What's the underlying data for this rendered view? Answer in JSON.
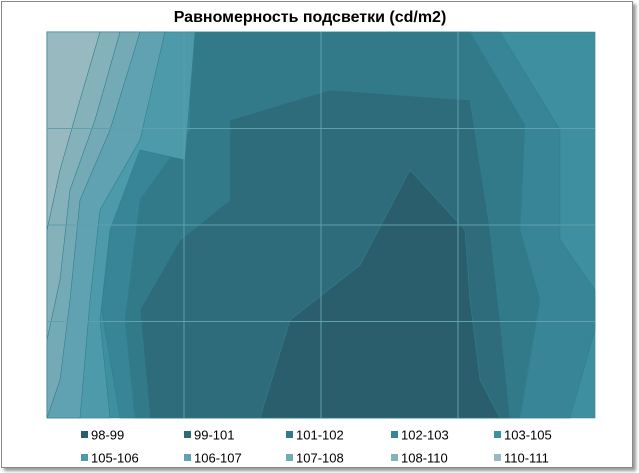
{
  "chart_data": {
    "type": "contour",
    "title": "Равномерность подсветки (cd/m2)",
    "series": [
      {
        "name": "98-99",
        "color": "#2a5e6c"
      },
      {
        "name": "99-101",
        "color": "#2e6c7b"
      },
      {
        "name": "101-102",
        "color": "#327a89"
      },
      {
        "name": "102-103",
        "color": "#378596"
      },
      {
        "name": "103-105",
        "color": "#3e8fa0"
      },
      {
        "name": "105-106",
        "color": "#4d9aab"
      },
      {
        "name": "106-107",
        "color": "#60a2b1"
      },
      {
        "name": "107-108",
        "color": "#74aab5"
      },
      {
        "name": "108-110",
        "color": "#85b1ba"
      },
      {
        "name": "110-111",
        "color": "#98b9c0"
      }
    ]
  }
}
